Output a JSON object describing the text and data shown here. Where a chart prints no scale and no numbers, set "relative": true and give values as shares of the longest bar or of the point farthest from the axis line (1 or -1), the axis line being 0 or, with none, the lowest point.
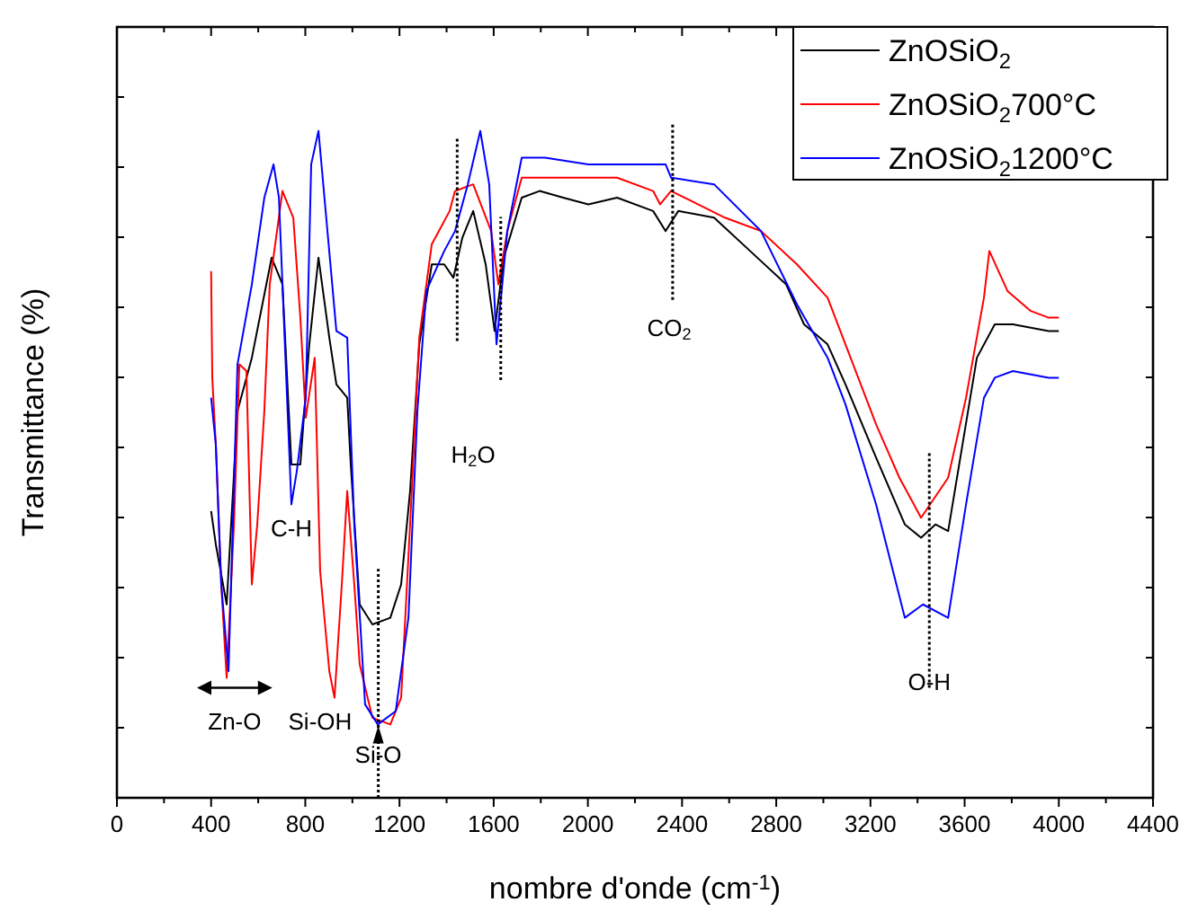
{
  "chart_data": {
    "type": "line",
    "xlabel": "nombre d'onde (cm$^{-1}$)",
    "ylabel": "Transmittance (%)",
    "relative": true,
    "xlim": [
      0,
      4400
    ],
    "xticks": [
      0,
      {
        "value": 200,
        "label": null
      },
      400,
      {
        "value": 600,
        "label": null
      },
      800,
      {
        "value": 1000,
        "label": null
      },
      1200,
      {
        "value": 1400,
        "label": null
      },
      1600,
      {
        "value": 1800,
        "label": null
      },
      2000,
      {
        "value": 2200,
        "label": null
      },
      2400,
      {
        "value": 2600,
        "label": null
      },
      2800,
      {
        "value": 3000,
        "label": null
      },
      3200,
      {
        "value": 3400,
        "label": null
      },
      3600,
      {
        "value": 3800,
        "label": null
      },
      4000,
      {
        "value": 4200,
        "label": null
      },
      4400
    ],
    "legend": "top right",
    "grid": false,
    "line_style": "solid",
    "marker": "none",
    "series": [
      {
        "name": "ZnOSiO$_{2}$",
        "color": "#000000",
        "x": [
          400,
          420,
          466,
          512,
          573,
          657,
          703,
          741,
          779,
          817,
          856,
          902,
          932,
          978,
          993,
          1031,
          1085,
          1161,
          1207,
          1245,
          1284,
          1337,
          1390,
          1429,
          1467,
          1513,
          1566,
          1604,
          1643,
          1719,
          1795,
          1895,
          2002,
          2124,
          2277,
          2330,
          2384,
          2536,
          2689,
          2842,
          2918,
          3018,
          3094,
          3224,
          3346,
          3415,
          3476,
          3530,
          3591,
          3652,
          3728,
          3805,
          3957,
          4000
        ],
        "values": [
          0.43,
          0.38,
          0.29,
          0.58,
          0.66,
          0.81,
          0.77,
          0.5,
          0.5,
          0.68,
          0.81,
          0.69,
          0.62,
          0.6,
          0.5,
          0.29,
          0.26,
          0.27,
          0.32,
          0.46,
          0.68,
          0.8,
          0.8,
          0.78,
          0.84,
          0.88,
          0.8,
          0.7,
          0.81,
          0.9,
          0.91,
          0.9,
          0.89,
          0.9,
          0.88,
          0.85,
          0.88,
          0.87,
          0.82,
          0.77,
          0.71,
          0.68,
          0.62,
          0.51,
          0.41,
          0.39,
          0.41,
          0.4,
          0.53,
          0.66,
          0.71,
          0.71,
          0.7,
          0.7
        ]
      },
      {
        "name": "ZnOSiO$_{2}$700°C",
        "color": "#ff0000",
        "x": [
          400,
          405,
          420,
          443,
          466,
          497,
          520,
          550,
          573,
          596,
          626,
          649,
          703,
          749,
          779,
          802,
          840,
          863,
          902,
          924,
          955,
          978,
          1008,
          1031,
          1085,
          1161,
          1207,
          1245,
          1284,
          1337,
          1413,
          1436,
          1513,
          1589,
          1620,
          1658,
          1719,
          1895,
          2124,
          2277,
          2307,
          2353,
          2582,
          2735,
          2888,
          3018,
          3224,
          3323,
          3415,
          3530,
          3606,
          3682,
          3705,
          3782,
          3881,
          3957,
          4000
        ],
        "values": [
          0.79,
          0.63,
          0.53,
          0.32,
          0.18,
          0.41,
          0.65,
          0.64,
          0.32,
          0.41,
          0.58,
          0.77,
          0.91,
          0.87,
          0.72,
          0.57,
          0.66,
          0.34,
          0.19,
          0.15,
          0.32,
          0.46,
          0.32,
          0.2,
          0.12,
          0.11,
          0.15,
          0.41,
          0.69,
          0.83,
          0.88,
          0.91,
          0.92,
          0.85,
          0.77,
          0.85,
          0.93,
          0.93,
          0.93,
          0.91,
          0.89,
          0.91,
          0.87,
          0.85,
          0.8,
          0.75,
          0.56,
          0.48,
          0.42,
          0.48,
          0.6,
          0.75,
          0.82,
          0.76,
          0.73,
          0.72,
          0.72
        ]
      },
      {
        "name": "ZnOSiO$_{2}$1200°C",
        "color": "#0000ff",
        "x": [
          400,
          420,
          443,
          474,
          512,
          573,
          626,
          665,
          688,
          711,
          741,
          764,
          802,
          825,
          856,
          894,
          932,
          978,
          1008,
          1054,
          1108,
          1184,
          1238,
          1276,
          1314,
          1390,
          1436,
          1490,
          1543,
          1581,
          1612,
          1658,
          1719,
          1818,
          2002,
          2101,
          2330,
          2353,
          2536,
          2735,
          2888,
          3018,
          3094,
          3224,
          3346,
          3423,
          3530,
          3606,
          3682,
          3728,
          3805,
          3957,
          4000
        ],
        "values": [
          0.6,
          0.53,
          0.32,
          0.19,
          0.65,
          0.77,
          0.9,
          0.95,
          0.9,
          0.7,
          0.44,
          0.49,
          0.6,
          0.95,
          1,
          0.85,
          0.7,
          0.69,
          0.41,
          0.14,
          0.11,
          0.13,
          0.27,
          0.58,
          0.76,
          0.82,
          0.85,
          0.92,
          1,
          0.92,
          0.68,
          0.85,
          0.96,
          0.96,
          0.95,
          0.95,
          0.95,
          0.93,
          0.92,
          0.85,
          0.74,
          0.66,
          0.59,
          0.44,
          0.27,
          0.29,
          0.27,
          0.44,
          0.6,
          0.63,
          0.64,
          0.63,
          0.63
        ]
      }
    ],
    "ref_lines": [
      {
        "axis": "x",
        "value": 1110,
        "line_style": "dotted",
        "color": "#000000"
      },
      {
        "axis": "x",
        "value": 1445,
        "line_style": "dotted",
        "color": "#000000"
      },
      {
        "axis": "x",
        "value": 1630,
        "line_style": "dotted",
        "color": "#000000"
      },
      {
        "axis": "x",
        "value": 2360,
        "line_style": "dotted",
        "color": "#000000"
      },
      {
        "axis": "x",
        "value": 3450,
        "line_style": "dotted",
        "color": "#000000"
      }
    ],
    "annotations": [
      "Zn-O",
      "C-H",
      "Si-OH",
      {
        "text": "Si-O",
        "x": 1110,
        "y": 0.06
      },
      "H$_{2}$O",
      "CO$_{2}$",
      {
        "text": "O-H",
        "x": 3450,
        "y": 0.17
      }
    ]
  }
}
